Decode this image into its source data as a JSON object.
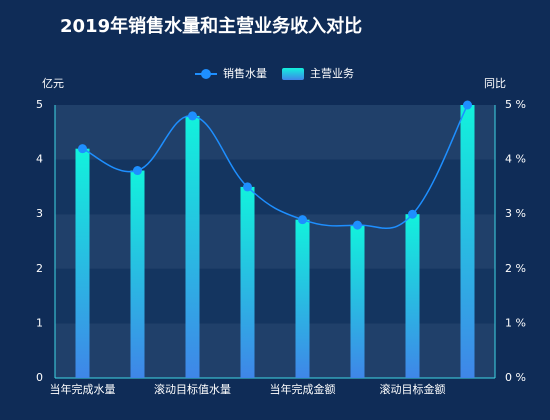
{
  "chart_data": {
    "type": "bar-line",
    "title": "2019年销售水量和主营业务收入对比",
    "y_label": "亿元",
    "y2_label": "同比",
    "categories": [
      "当年完成水量",
      null,
      "滚动目标值水量",
      null,
      "当年完成金额",
      null,
      "滚动目标金额",
      null
    ],
    "series": [
      {
        "name": "销售水量",
        "type": "line",
        "axis": "y2",
        "color": "#1e8fff",
        "values": [
          4.2,
          3.8,
          4.8,
          3.5,
          2.9,
          2.8,
          3.0,
          5.0
        ]
      },
      {
        "name": "主营业务",
        "type": "bar",
        "color": "#12f2dc",
        "values": [
          4.2,
          3.8,
          4.8,
          3.5,
          2.9,
          2.8,
          3.0,
          5.0
        ]
      }
    ],
    "ylim": [
      0,
      5
    ],
    "yticks": [
      0,
      1,
      2,
      3,
      4,
      5
    ],
    "y2lim": [
      0,
      5
    ],
    "y2ticks": [
      {
        "value": 0,
        "label": "0 %"
      },
      {
        "value": 1,
        "label": "1 %"
      },
      {
        "value": 2,
        "label": "2 %"
      },
      {
        "value": 3,
        "label": "3 %"
      },
      {
        "value": 4,
        "label": "4 %"
      },
      {
        "value": 5,
        "label": "5 %"
      }
    ],
    "grid": true,
    "legend": "top"
  }
}
